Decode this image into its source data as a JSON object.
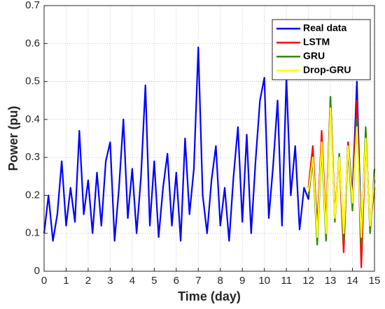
{
  "chart_data": {
    "type": "line",
    "xlabel": "Time (day)",
    "ylabel": "Power (pu)",
    "xlim": [
      0,
      15
    ],
    "xticks": [
      0,
      1,
      2,
      3,
      4,
      5,
      6,
      7,
      8,
      9,
      10,
      11,
      12,
      13,
      14,
      15
    ],
    "ylim": [
      0,
      0.7
    ],
    "yticks": [
      0,
      0.1,
      0.2,
      0.3,
      0.4,
      0.5,
      0.6,
      0.7
    ],
    "grid": true,
    "legend": "upper right",
    "series": [
      {
        "name": "Real data",
        "color": "#0000ff",
        "x": [
          0,
          0.2,
          0.4,
          0.6,
          0.8,
          1,
          1.2,
          1.4,
          1.6,
          1.8,
          2,
          2.2,
          2.4,
          2.6,
          2.8,
          3,
          3.2,
          3.4,
          3.6,
          3.8,
          4,
          4.2,
          4.4,
          4.6,
          4.8,
          5,
          5.2,
          5.4,
          5.6,
          5.8,
          6,
          6.2,
          6.4,
          6.6,
          6.8,
          7,
          7.2,
          7.4,
          7.6,
          7.8,
          8,
          8.2,
          8.4,
          8.6,
          8.8,
          9,
          9.2,
          9.4,
          9.6,
          9.8,
          10,
          10.2,
          10.4,
          10.6,
          10.8,
          11,
          11.2,
          11.4,
          11.6,
          11.8,
          12,
          12.2,
          12.4,
          12.6,
          12.8,
          13,
          13.2,
          13.4,
          13.6,
          13.8,
          14,
          14.2,
          14.4,
          14.6,
          14.8,
          15
        ],
        "values": [
          0.1,
          0.2,
          0.08,
          0.15,
          0.29,
          0.12,
          0.22,
          0.13,
          0.37,
          0.15,
          0.24,
          0.1,
          0.26,
          0.12,
          0.29,
          0.34,
          0.08,
          0.22,
          0.4,
          0.14,
          0.27,
          0.1,
          0.25,
          0.49,
          0.12,
          0.29,
          0.09,
          0.22,
          0.31,
          0.12,
          0.26,
          0.08,
          0.35,
          0.15,
          0.27,
          0.59,
          0.2,
          0.1,
          0.24,
          0.33,
          0.12,
          0.22,
          0.08,
          0.25,
          0.38,
          0.13,
          0.36,
          0.1,
          0.29,
          0.45,
          0.51,
          0.14,
          0.28,
          0.45,
          0.12,
          0.51,
          0.2,
          0.33,
          0.11,
          0.22,
          0.19,
          0.31,
          0.12,
          0.35,
          0.1,
          0.45,
          0.14,
          0.3,
          0.08,
          0.34,
          0.2,
          0.5,
          0.09,
          0.35,
          0.12,
          0.24
        ]
      },
      {
        "name": "LSTM",
        "color": "#ff0000",
        "x": [
          12,
          12.2,
          12.4,
          12.6,
          12.8,
          13,
          13.2,
          13.4,
          13.6,
          13.8,
          14,
          14.2,
          14.4,
          14.6,
          14.8,
          15
        ],
        "values": [
          0.22,
          0.33,
          0.1,
          0.37,
          0.12,
          0.46,
          0.15,
          0.3,
          0.05,
          0.34,
          0.18,
          0.45,
          0.01,
          0.36,
          0.12,
          0.22
        ]
      },
      {
        "name": "GRU",
        "color": "#2e8b00",
        "x": [
          12,
          12.2,
          12.4,
          12.6,
          12.8,
          13,
          13.2,
          13.4,
          13.6,
          13.8,
          14,
          14.2,
          14.4,
          14.6,
          14.8,
          15
        ],
        "values": [
          0.2,
          0.29,
          0.07,
          0.33,
          0.08,
          0.46,
          0.13,
          0.31,
          0.08,
          0.32,
          0.16,
          0.4,
          0.07,
          0.38,
          0.1,
          0.27
        ]
      },
      {
        "name": "Drop-GRU",
        "color": "#ffff00",
        "x": [
          12,
          12.2,
          12.4,
          12.6,
          12.8,
          13,
          13.2,
          13.4,
          13.6,
          13.8,
          14,
          14.2,
          14.4,
          14.6,
          14.8,
          15
        ],
        "values": [
          0.21,
          0.3,
          0.09,
          0.34,
          0.1,
          0.43,
          0.14,
          0.3,
          0.1,
          0.33,
          0.18,
          0.38,
          0.09,
          0.35,
          0.12,
          0.25
        ]
      }
    ]
  }
}
